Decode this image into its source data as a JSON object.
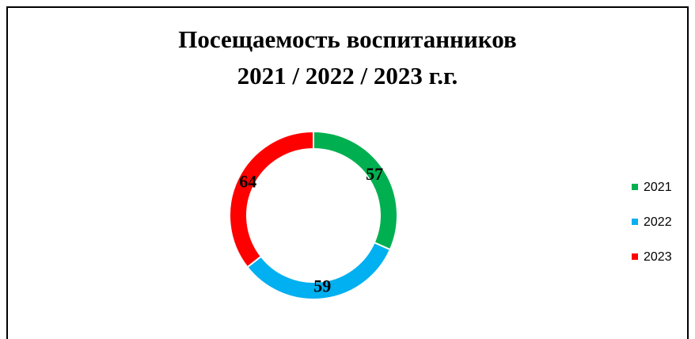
{
  "chart_data": {
    "type": "donut",
    "title": [
      "Посещаемость воспитанников",
      "2021 / 2022 / 2023 г.г."
    ],
    "categories": [
      "2021",
      "2022",
      "2023"
    ],
    "values": [
      57,
      59,
      64
    ],
    "colors": [
      "#00b050",
      "#00b0f0",
      "#ff0000"
    ],
    "legend": "right"
  }
}
